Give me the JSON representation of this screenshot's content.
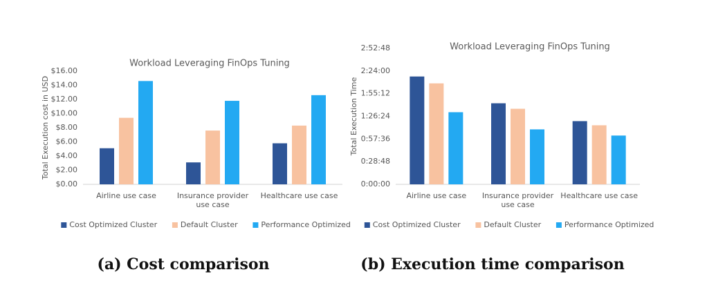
{
  "chart_data": [
    {
      "type": "bar",
      "title": "Workload Leveraging FinOps Tuning",
      "y_label": "Total Execution cost in USD",
      "caption": "(a) Cost comparison",
      "categories": [
        "Airline use case",
        "Insurance provider use case",
        "Healthcare use case"
      ],
      "series": [
        {
          "name": "Cost Optimized Cluster",
          "color": "#2e5597",
          "values": [
            5.1,
            3.1,
            5.8
          ]
        },
        {
          "name": "Default Cluster",
          "color": "#f8c2a0",
          "values": [
            9.4,
            7.6,
            8.3
          ]
        },
        {
          "name": "Performance Optimized",
          "color": "#23a9f2",
          "values": [
            14.6,
            11.8,
            12.6
          ]
        }
      ],
      "ylim": [
        0,
        16
      ],
      "yticks": [
        {
          "value": 0,
          "label": "$0.00"
        },
        {
          "value": 2,
          "label": "$2.00"
        },
        {
          "value": 4,
          "label": "$4.00"
        },
        {
          "value": 6,
          "label": "$6.00"
        },
        {
          "value": 8,
          "label": "$8.00"
        },
        {
          "value": 10,
          "label": "$10.00"
        },
        {
          "value": 12,
          "label": "$12.00"
        },
        {
          "value": 14,
          "label": "$14.00"
        },
        {
          "value": 16,
          "label": "$16.00"
        }
      ],
      "grid": false,
      "legend": "bottom"
    },
    {
      "type": "bar",
      "title": "Workload Leveraging FinOps Tuning",
      "y_label": "Total Execution Time",
      "caption": "(b) Execution time comparison",
      "categories": [
        "Airline use case",
        "Insurance provider use case",
        "Healthcare use case"
      ],
      "series": [
        {
          "name": "Cost Optimized Cluster",
          "color": "#2e5597",
          "values": [
            8221,
            6179,
            4817
          ]
        },
        {
          "name": "Default Cluster",
          "color": "#f8c2a0",
          "values": [
            7697,
            5760,
            4503
          ]
        },
        {
          "name": "Performance Optimized",
          "color": "#23a9f2",
          "values": [
            5498,
            4189,
            3718
          ]
        }
      ],
      "ylim": [
        0,
        10368
      ],
      "yticks": [
        {
          "value": 0,
          "label": "0:00:00"
        },
        {
          "value": 1728,
          "label": "0:28:48"
        },
        {
          "value": 3456,
          "label": "0:57:36"
        },
        {
          "value": 5184,
          "label": "1:26:24"
        },
        {
          "value": 6912,
          "label": "1:55:12"
        },
        {
          "value": 8640,
          "label": "2:24:00"
        },
        {
          "value": 10368,
          "label": "2:52:48"
        }
      ],
      "grid": false,
      "legend": "bottom"
    }
  ]
}
